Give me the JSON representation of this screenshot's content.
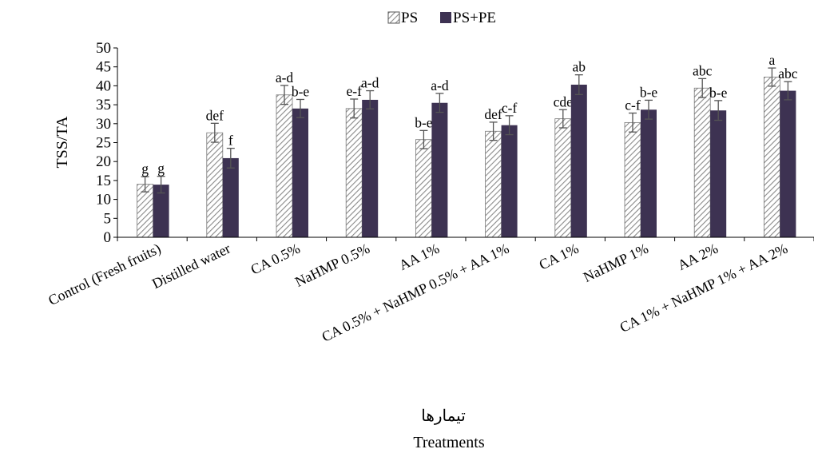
{
  "chart_data": {
    "type": "bar",
    "title": "",
    "ylabel": "TSS/TA",
    "xlabel_fa": "تیمارها",
    "xlabel": "Treatments",
    "ylim": [
      0,
      50
    ],
    "yticks": [
      0,
      5,
      10,
      15,
      20,
      25,
      30,
      35,
      40,
      45,
      50
    ],
    "legend_position": "top-center",
    "grid": false,
    "categories": [
      "Control (Fresh fruits)",
      "Distilled water",
      "CA 0.5%",
      "NaHMP 0.5%",
      "AA 1%",
      "CA 0.5% + NaHMP 0.5% + AA 1%",
      "CA 1%",
      "NaHMP 1%",
      "AA 2%",
      "CA 1% + NaHMP 1% + AA 2%"
    ],
    "series": [
      {
        "name": "PS",
        "pattern": "diagonal-hatch",
        "color": "#ffffff",
        "stroke": "#8a8a8a",
        "values": [
          14.0,
          27.6,
          37.6,
          34.0,
          25.8,
          28.0,
          31.3,
          30.3,
          39.4,
          42.3
        ],
        "errors": [
          2.0,
          2.5,
          2.5,
          2.5,
          2.4,
          2.4,
          2.4,
          2.5,
          2.5,
          2.4
        ],
        "letters": [
          "g",
          "def",
          "a-d",
          "e-f",
          "b-e",
          "def",
          "cde",
          "c-f",
          "abc",
          "a"
        ]
      },
      {
        "name": "PS+PE",
        "pattern": "solid",
        "color": "#3d3252",
        "values": [
          13.9,
          20.9,
          34.0,
          36.3,
          35.5,
          29.6,
          40.3,
          33.7,
          33.5,
          38.7
        ],
        "errors": [
          2.2,
          2.6,
          2.4,
          2.4,
          2.5,
          2.5,
          2.6,
          2.5,
          2.6,
          2.4
        ],
        "letters": [
          "g",
          "f",
          "b-e",
          "a-d",
          "a-d",
          "c-f",
          "ab",
          "b-e",
          "b-e",
          "abc"
        ]
      }
    ]
  }
}
